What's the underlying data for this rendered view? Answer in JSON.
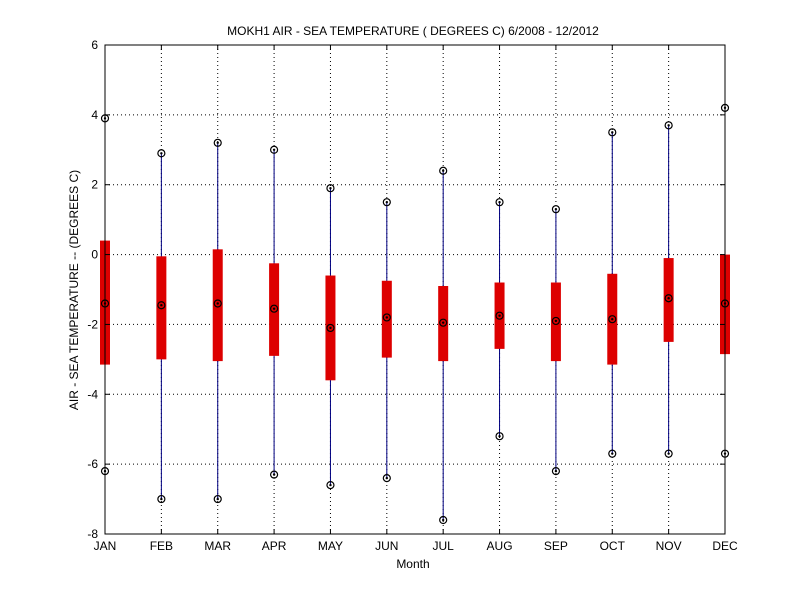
{
  "chart_data": {
    "type": "box",
    "title": "MOKH1  AIR - SEA TEMPERATURE ( DEGREES C) 6/2008 - 12/2012",
    "xlabel": "Month",
    "ylabel": "AIR - SEA TEMPERATURE -- (DEGREES C)",
    "ylim": [
      -8,
      6
    ],
    "yticks": [
      "-8",
      "-6",
      "-4",
      "-2",
      "0",
      "2",
      "4",
      "6"
    ],
    "grid": true,
    "categories": [
      "JAN",
      "FEB",
      "MAR",
      "APR",
      "MAY",
      "JUN",
      "JUL",
      "AUG",
      "SEP",
      "OCT",
      "NOV",
      "DEC"
    ],
    "stats": [
      {
        "min": -6.2,
        "q1": -3.15,
        "median": -1.4,
        "q3": 0.4,
        "max": 3.9
      },
      {
        "min": -7.0,
        "q1": -3.0,
        "median": -1.45,
        "q3": -0.05,
        "max": 2.9
      },
      {
        "min": -7.0,
        "q1": -3.05,
        "median": -1.4,
        "q3": 0.15,
        "max": 3.2
      },
      {
        "min": -6.3,
        "q1": -2.9,
        "median": -1.55,
        "q3": -0.25,
        "max": 3.0
      },
      {
        "min": -6.6,
        "q1": -3.6,
        "median": -2.1,
        "q3": -0.6,
        "max": 1.9
      },
      {
        "min": -6.4,
        "q1": -2.95,
        "median": -1.8,
        "q3": -0.75,
        "max": 1.5
      },
      {
        "min": -7.6,
        "q1": -3.05,
        "median": -1.95,
        "q3": -0.9,
        "max": 2.4
      },
      {
        "min": -5.2,
        "q1": -2.7,
        "median": -1.75,
        "q3": -0.8,
        "max": 1.5
      },
      {
        "min": -6.2,
        "q1": -3.05,
        "median": -1.9,
        "q3": -0.8,
        "max": 1.3
      },
      {
        "min": -5.7,
        "q1": -3.15,
        "median": -1.85,
        "q3": -0.55,
        "max": 3.5
      },
      {
        "min": -5.7,
        "q1": -2.5,
        "median": -1.25,
        "q3": -0.1,
        "max": 3.7
      },
      {
        "min": -5.7,
        "q1": -2.85,
        "median": -1.4,
        "q3": 0.0,
        "max": 4.2
      }
    ],
    "colors": {
      "whisker": "#000080",
      "box": "#dd0000",
      "marker": "#000000",
      "grid": "#000000"
    }
  }
}
